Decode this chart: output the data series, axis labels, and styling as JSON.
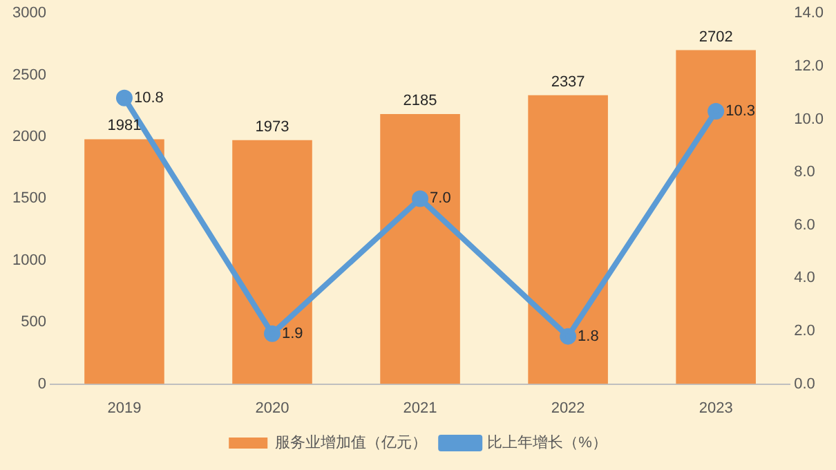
{
  "chart_data": {
    "type": "bar",
    "categories": [
      "2019",
      "2020",
      "2021",
      "2022",
      "2023"
    ],
    "series": [
      {
        "name": "服务业增加值（亿元）",
        "type": "bar",
        "color": "#f0924a",
        "values": [
          1981,
          1973,
          2185,
          2337,
          2702
        ],
        "value_labels": [
          "1981",
          "1973",
          "2185",
          "2337",
          "2702"
        ]
      },
      {
        "name": "比上年增长（%）",
        "type": "line",
        "axis": "y2",
        "color": "#5b9bd5",
        "values": [
          10.8,
          1.9,
          7.0,
          1.8,
          10.3
        ],
        "value_labels": [
          "10.8",
          "1.9",
          "7.0",
          "1.8",
          "10.3"
        ]
      }
    ],
    "ylim": [
      0,
      3000
    ],
    "yticks": [
      0,
      500,
      1000,
      1500,
      2000,
      2500,
      3000
    ],
    "y2lim": [
      0,
      14
    ],
    "y2ticks": [
      {
        "value": 0,
        "label": "0.0"
      },
      {
        "value": 2,
        "label": "2.0"
      },
      {
        "value": 4,
        "label": "4.0"
      },
      {
        "value": 6,
        "label": "6.0"
      },
      {
        "value": 8,
        "label": "8.0"
      },
      {
        "value": 10,
        "label": "10.0"
      },
      {
        "value": 12,
        "label": "12.0"
      },
      {
        "value": 14,
        "label": "14.0"
      }
    ],
    "grid": false,
    "legend": "bottom",
    "marker": "circle",
    "line_style": "solid"
  }
}
